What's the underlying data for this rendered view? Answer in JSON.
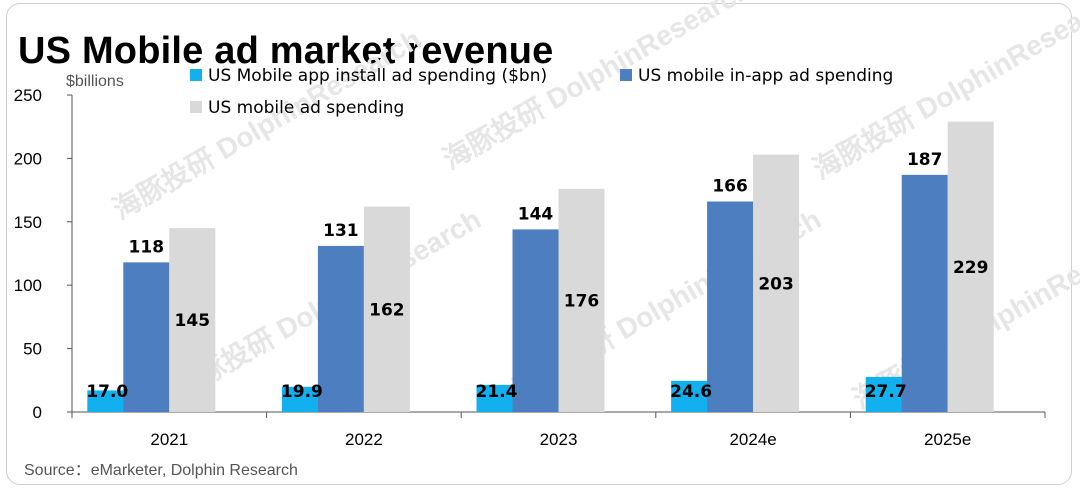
{
  "page": {
    "title": "US Mobile ad market revenue",
    "unit_label": "$billions",
    "source": "Source：eMarketer, Dolphin Research",
    "watermark": "海豚投研 DolphinResearch"
  },
  "colors": {
    "install": "#12B0EF",
    "inapp": "#4D7EBF",
    "total": "#D9D9D9",
    "axis": "#555555"
  },
  "chart_data": {
    "type": "bar",
    "title": "US Mobile ad market revenue",
    "ylabel": "$billions",
    "xlabel": "",
    "categories": [
      "2021",
      "2022",
      "2023",
      "2024e",
      "2025e"
    ],
    "ylim": [
      0,
      250
    ],
    "yticks": [
      0,
      50,
      100,
      150,
      200,
      250
    ],
    "grid": false,
    "legend_position": "top",
    "series": [
      {
        "name": "US Mobile app install ad spending ($bn)",
        "key": "install",
        "values": [
          17.0,
          19.9,
          21.4,
          24.6,
          27.7
        ],
        "labels": [
          "17.0",
          "19.9",
          "21.4",
          "24.6",
          "27.7"
        ]
      },
      {
        "name": "US mobile in-app ad spending",
        "key": "inapp",
        "values": [
          118,
          131,
          144,
          166,
          187
        ],
        "labels": [
          "118",
          "131",
          "144",
          "166",
          "187"
        ]
      },
      {
        "name": "US mobile ad spending",
        "key": "total",
        "values": [
          145,
          162,
          176,
          203,
          229
        ],
        "labels": [
          "145",
          "162",
          "176",
          "203",
          "229"
        ]
      }
    ]
  }
}
